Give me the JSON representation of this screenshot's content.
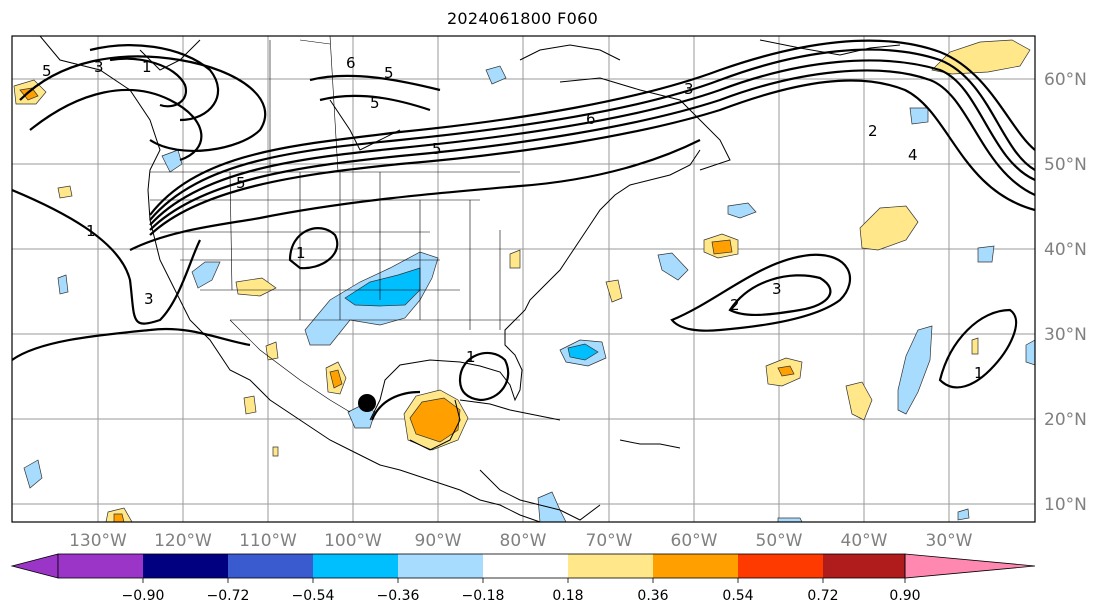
{
  "title": "2024061800 F060",
  "lat_labels": [
    "60°N",
    "50°N",
    "40°N",
    "30°N",
    "20°N",
    "10°N"
  ],
  "lon_labels": [
    "130°W",
    "120°W",
    "110°W",
    "100°W",
    "90°W",
    "80°W",
    "70°W",
    "60°W",
    "50°W",
    "40°W",
    "30°W"
  ],
  "colorbar": {
    "ticks": [
      "−0.90",
      "−0.72",
      "−0.54",
      "−0.36",
      "−0.18",
      "0.18",
      "0.36",
      "0.54",
      "0.72",
      "0.90"
    ],
    "under_color": "#9a35c8",
    "over_color": "#ff88b0",
    "colors": [
      "#000080",
      "#3a5bd0",
      "#00bfff",
      "#a8dcff",
      "#ffffff",
      "#ffe78a",
      "#ffa000",
      "#ff3a00",
      "#b01c1c"
    ]
  },
  "contour_labels": [
    "5",
    "3",
    "1",
    "5",
    "6",
    "5",
    "5",
    "6",
    "5",
    "3",
    "2",
    "4",
    "1",
    "1",
    "3",
    "2",
    "3",
    "1",
    "1"
  ],
  "marker": "storm-center"
}
